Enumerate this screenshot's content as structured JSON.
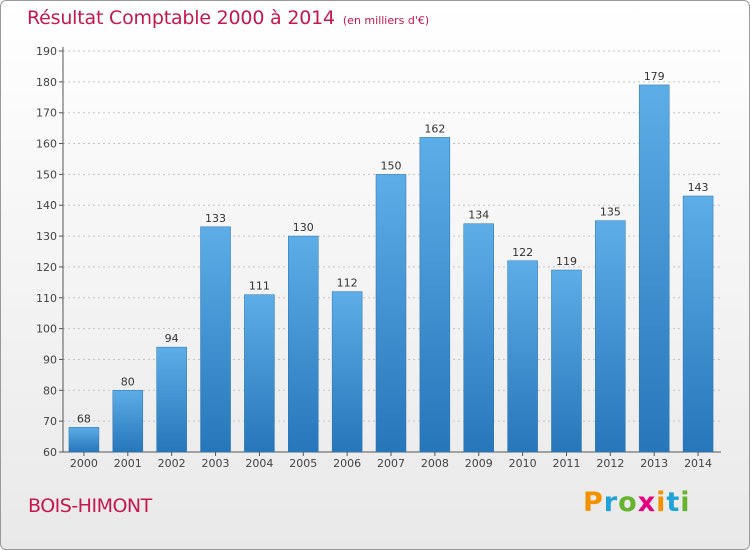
{
  "title": {
    "main": "Résultat Comptable 2000 à 2014",
    "unit": "(en milliers d'€)"
  },
  "place_name": "BOIS-HIMONT",
  "logo": {
    "letters": [
      "P",
      "r",
      "o",
      "x",
      "i",
      "t",
      "i"
    ],
    "colors": [
      "#f39200",
      "#1ea2d8",
      "#65b32e",
      "#e6007e",
      "#f39200",
      "#1ea2d8",
      "#65b32e"
    ]
  },
  "chart_data": {
    "type": "bar",
    "title": "Résultat Comptable 2000 à 2014",
    "ylabel": "(en milliers d'€)",
    "xlabel": "",
    "categories": [
      "2000",
      "2001",
      "2002",
      "2003",
      "2004",
      "2005",
      "2006",
      "2007",
      "2008",
      "2009",
      "2010",
      "2011",
      "2012",
      "2013",
      "2014"
    ],
    "values": [
      68,
      80,
      94,
      133,
      111,
      130,
      112,
      150,
      162,
      134,
      122,
      119,
      135,
      179,
      143
    ],
    "ylim": [
      60,
      190
    ],
    "yticks": [
      60,
      70,
      80,
      90,
      100,
      110,
      120,
      130,
      140,
      150,
      160,
      170,
      180,
      190
    ],
    "grid": true,
    "bar_color": "#3a8fd8"
  }
}
